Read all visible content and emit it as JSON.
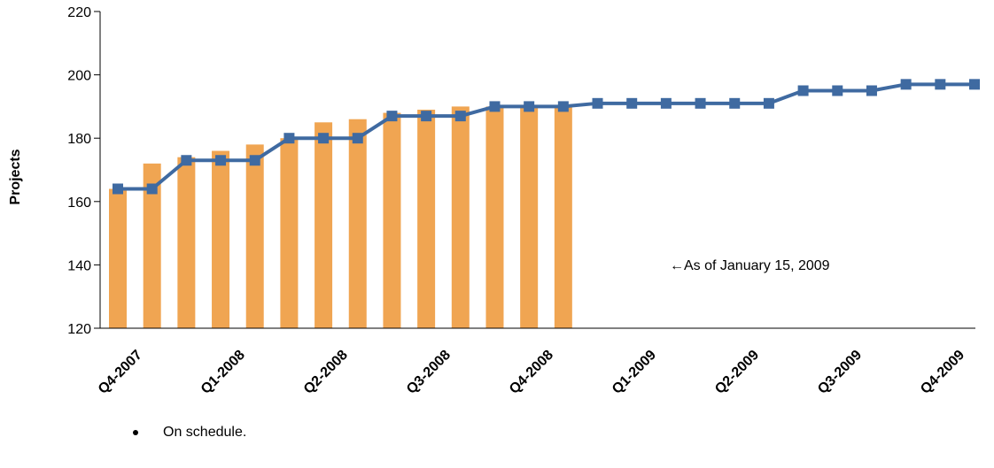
{
  "chart_data": {
    "type": "bar",
    "ylabel": "Projects",
    "ylim": [
      120,
      220
    ],
    "yticks": [
      120,
      140,
      160,
      180,
      200,
      220
    ],
    "x_labels": [
      "Q4-2007",
      "Q1-2008",
      "Q2-2008",
      "Q3-2008",
      "Q4-2008",
      "Q1-2009",
      "Q2-2009",
      "Q3-2009",
      "Q4-2009"
    ],
    "bars": {
      "color": "#F0A552",
      "values": [
        164,
        172,
        174,
        176,
        178,
        180,
        185,
        186,
        188,
        189,
        190,
        190,
        190,
        190
      ]
    },
    "line": {
      "color": "#3F6AA1",
      "marker": "square",
      "values": [
        164,
        164,
        173,
        173,
        173,
        180,
        180,
        180,
        187,
        187,
        187,
        190,
        190,
        190,
        191,
        191,
        191,
        191,
        191,
        191,
        195,
        195,
        195,
        197,
        197,
        197
      ]
    },
    "annotation": "←As of January 15, 2009"
  },
  "notes": {
    "bullet": "On schedule."
  }
}
